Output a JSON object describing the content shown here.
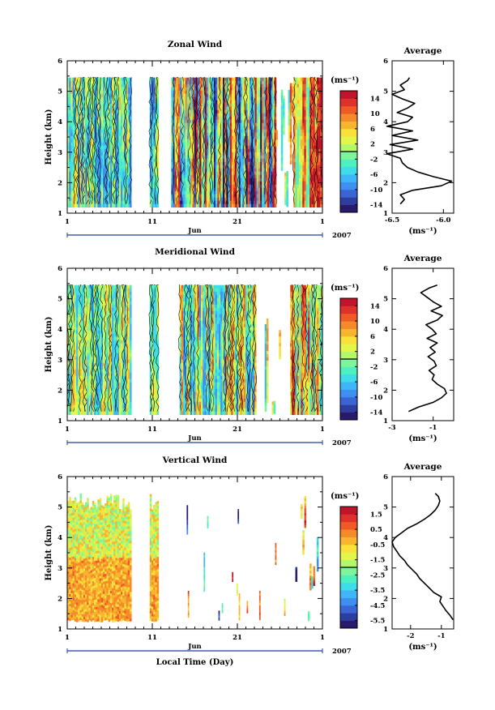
{
  "chart_data": [
    {
      "type": "heatmap",
      "title": "Zonal Wind",
      "ylabel": "Height (km)",
      "xlabel": "",
      "x_month": "Jun",
      "x_year": "2007",
      "x_ticklabels": [
        "1",
        "11",
        "21",
        "1"
      ],
      "x_range_days": [
        1,
        31
      ],
      "ylim": [
        1,
        6
      ],
      "y_ticklabels": [
        "1",
        "2",
        "3",
        "4",
        "5",
        "6"
      ],
      "colorbar": {
        "unit": "(ms⁻¹)",
        "range": [
          -16,
          16
        ],
        "ticklabels": [
          "14",
          "10",
          "6",
          "2",
          "-2",
          "-6",
          "-10",
          "-14"
        ],
        "tick_values": [
          14,
          10,
          6,
          2,
          -2,
          -6,
          -10,
          -14
        ]
      },
      "data_coverage": [
        {
          "days": [
            1,
            8.5
          ],
          "pattern": "continuous",
          "range": [
            -10,
            6
          ]
        },
        {
          "days": [
            10.7,
            11.7
          ],
          "pattern": "continuous",
          "range": [
            -12,
            4
          ]
        },
        {
          "days": [
            13.2,
            25.4
          ],
          "pattern": "continuous",
          "range": [
            -16,
            16
          ]
        },
        {
          "days": [
            25.5,
            27.5
          ],
          "pattern": "patchy",
          "range": [
            -6,
            12
          ]
        },
        {
          "days": [
            27.6,
            31
          ],
          "pattern": "continuous",
          "range": [
            -4,
            16
          ]
        }
      ],
      "profile": {
        "title": "Average",
        "xlabel": "(ms⁻¹)",
        "xlim": [
          -6.5,
          -5.9
        ],
        "x_ticklabels": [
          "-6.5",
          "-6.0"
        ],
        "x_tick_values": [
          -6.5,
          -6.0
        ],
        "ylim": [
          1,
          6
        ],
        "y_ticklabels": [
          "1",
          "2",
          "3",
          "4",
          "5",
          "6"
        ],
        "heights": [
          1.3,
          1.45,
          1.6,
          1.75,
          1.9,
          2.05,
          2.2,
          2.35,
          2.5,
          2.65,
          2.8,
          2.95,
          3.1,
          3.25,
          3.4,
          3.55,
          3.7,
          3.85,
          4.0,
          4.15,
          4.3,
          4.45,
          4.6,
          4.75,
          4.9,
          5.05,
          5.2,
          5.35,
          5.45
        ],
        "values": [
          -6.42,
          -6.38,
          -6.42,
          -6.3,
          -6.02,
          -5.92,
          -6.1,
          -6.25,
          -6.35,
          -6.4,
          -6.42,
          -6.55,
          -6.3,
          -6.52,
          -6.25,
          -6.5,
          -6.3,
          -6.55,
          -6.35,
          -6.3,
          -6.45,
          -6.35,
          -6.28,
          -6.4,
          -6.5,
          -6.38,
          -6.42,
          -6.35,
          -6.33
        ]
      }
    },
    {
      "type": "heatmap",
      "title": "Meridional Wind",
      "ylabel": "Height (km)",
      "xlabel": "",
      "x_month": "Jun",
      "x_year": "2007",
      "x_ticklabels": [
        "1",
        "11",
        "21",
        "1"
      ],
      "x_range_days": [
        1,
        31
      ],
      "ylim": [
        1,
        6
      ],
      "y_ticklabels": [
        "1",
        "2",
        "3",
        "4",
        "5",
        "6"
      ],
      "colorbar": {
        "unit": "(ms⁻¹)",
        "range": [
          -16,
          16
        ],
        "ticklabels": [
          "14",
          "10",
          "6",
          "2",
          "-2",
          "-6",
          "-10",
          "-14"
        ],
        "tick_values": [
          14,
          10,
          6,
          2,
          -2,
          -6,
          -10,
          -14
        ]
      },
      "data_coverage": [
        {
          "days": [
            1,
            8.5
          ],
          "pattern": "continuous",
          "range": [
            -8,
            6
          ]
        },
        {
          "days": [
            10.7,
            11.7
          ],
          "pattern": "continuous",
          "range": [
            -6,
            4
          ]
        },
        {
          "days": [
            14.2,
            23.2
          ],
          "pattern": "continuous",
          "range": [
            -10,
            10
          ]
        },
        {
          "days": [
            24.0,
            26.0
          ],
          "pattern": "patchy",
          "range": [
            -8,
            8
          ]
        },
        {
          "days": [
            27.2,
            31
          ],
          "pattern": "continuous",
          "range": [
            -6,
            14
          ]
        }
      ],
      "profile": {
        "title": "Average",
        "xlabel": "(ms⁻¹)",
        "xlim": [
          -3,
          0
        ],
        "x_ticklabels": [
          "-3",
          "-1"
        ],
        "x_tick_values": [
          -3,
          -1
        ],
        "ylim": [
          1,
          6
        ],
        "y_ticklabels": [
          "1",
          "2",
          "3",
          "4",
          "5",
          "6"
        ],
        "heights": [
          1.3,
          1.45,
          1.6,
          1.75,
          1.9,
          2.05,
          2.2,
          2.35,
          2.5,
          2.65,
          2.8,
          2.95,
          3.1,
          3.25,
          3.4,
          3.55,
          3.7,
          3.85,
          4.0,
          4.15,
          4.3,
          4.45,
          4.6,
          4.75,
          4.9,
          5.05,
          5.2,
          5.35,
          5.45
        ],
        "values": [
          -2.2,
          -1.7,
          -1.0,
          -0.6,
          -0.35,
          -0.45,
          -0.8,
          -1.05,
          -0.95,
          -1.2,
          -0.85,
          -0.95,
          -1.25,
          -0.9,
          -1.15,
          -0.8,
          -1.3,
          -0.85,
          -1.05,
          -1.35,
          -0.8,
          -0.55,
          -1.1,
          -0.6,
          -1.0,
          -1.3,
          -1.6,
          -1.2,
          -0.8
        ]
      }
    },
    {
      "type": "heatmap",
      "title": "Vertical Wind",
      "ylabel": "Height (km)",
      "xlabel": "Local Time (Day)",
      "x_month": "Jun",
      "x_year": "2007",
      "x_ticklabels": [
        "1",
        "11",
        "21",
        "1"
      ],
      "x_range_days": [
        1,
        31
      ],
      "ylim": [
        1,
        6
      ],
      "y_ticklabels": [
        "1",
        "2",
        "3",
        "4",
        "5",
        "6"
      ],
      "colorbar": {
        "unit": "(ms⁻¹)",
        "range": [
          -6,
          2
        ],
        "ticklabels": [
          "1.5",
          "0.5",
          "-0.5",
          "-1.5",
          "-2.5",
          "-3.5",
          "-4.5",
          "-5.5"
        ],
        "tick_values": [
          1.5,
          0.5,
          -0.5,
          -1.5,
          -2.5,
          -3.5,
          -4.5,
          -5.5
        ]
      },
      "data_coverage": [
        {
          "days": [
            1,
            8.5
          ],
          "pattern": "continuous",
          "range": [
            -2.5,
            0.6
          ]
        },
        {
          "days": [
            10.7,
            11.7
          ],
          "pattern": "continuous",
          "range": [
            -2.5,
            0.6
          ]
        },
        {
          "days": [
            12.5,
            27.5
          ],
          "pattern": "sparse",
          "range": [
            -6,
            2
          ]
        },
        {
          "days": [
            27.6,
            31
          ],
          "pattern": "sparse-dense",
          "range": [
            -6,
            2
          ]
        }
      ],
      "profile": {
        "title": "Average",
        "xlabel": "(ms⁻¹)",
        "xlim": [
          -2.6,
          -0.6
        ],
        "x_ticklabels": [
          "-2",
          "-1"
        ],
        "x_tick_values": [
          -2,
          -1
        ],
        "ylim": [
          1,
          6
        ],
        "y_ticklabels": [
          "1",
          "2",
          "3",
          "4",
          "5",
          "6"
        ],
        "heights": [
          1.3,
          1.45,
          1.6,
          1.75,
          1.9,
          2.05,
          2.2,
          2.35,
          2.5,
          2.65,
          2.8,
          2.95,
          3.1,
          3.25,
          3.4,
          3.55,
          3.7,
          3.85,
          4.0,
          4.15,
          4.3,
          4.45,
          4.6,
          4.75,
          4.9,
          5.05,
          5.2,
          5.35,
          5.45
        ],
        "values": [
          -0.62,
          -0.72,
          -0.85,
          -0.95,
          -1.05,
          -1.0,
          -1.25,
          -1.4,
          -1.55,
          -1.7,
          -1.8,
          -1.95,
          -2.1,
          -2.2,
          -2.35,
          -2.45,
          -2.55,
          -2.6,
          -2.5,
          -2.3,
          -2.1,
          -1.8,
          -1.55,
          -1.35,
          -1.2,
          -1.1,
          -1.05,
          -1.1,
          -1.2
        ]
      }
    }
  ]
}
